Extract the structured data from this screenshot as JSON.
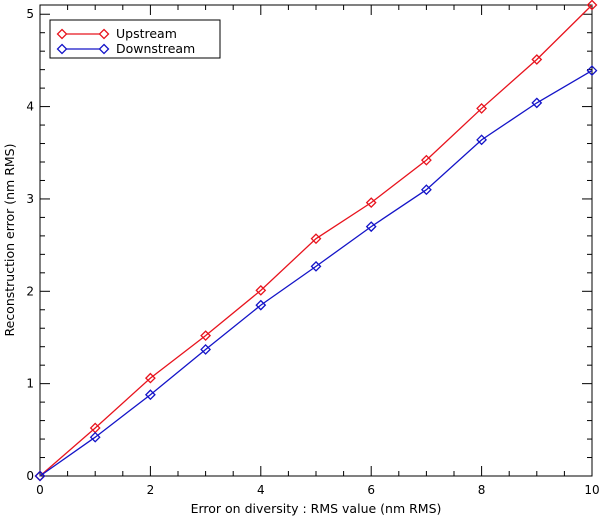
{
  "chart_data": {
    "type": "line",
    "xlabel": "Error on diversity : RMS value (nm RMS)",
    "ylabel": "Reconstruction error (nm RMS)",
    "xlim": [
      0,
      10
    ],
    "ylim": [
      0,
      5.1
    ],
    "xticks": [
      "0",
      "2",
      "4",
      "6",
      "8",
      "10"
    ],
    "yticks": [
      "0",
      "1",
      "2",
      "3",
      "4",
      "5"
    ],
    "grid": false,
    "legend_position": "top-left",
    "x": [
      0,
      1,
      2,
      3,
      4,
      5,
      6,
      7,
      8,
      9,
      10
    ],
    "series": [
      {
        "name": "Upstream",
        "color": "#e8141e",
        "marker": "diamond",
        "values": [
          0.0,
          0.52,
          1.06,
          1.52,
          2.01,
          2.57,
          2.96,
          3.42,
          3.98,
          4.51,
          5.1
        ]
      },
      {
        "name": "Downstream",
        "color": "#1414c8",
        "marker": "diamond",
        "values": [
          0.0,
          0.42,
          0.88,
          1.37,
          1.85,
          2.27,
          2.7,
          3.1,
          3.64,
          4.04,
          4.39
        ]
      }
    ]
  }
}
